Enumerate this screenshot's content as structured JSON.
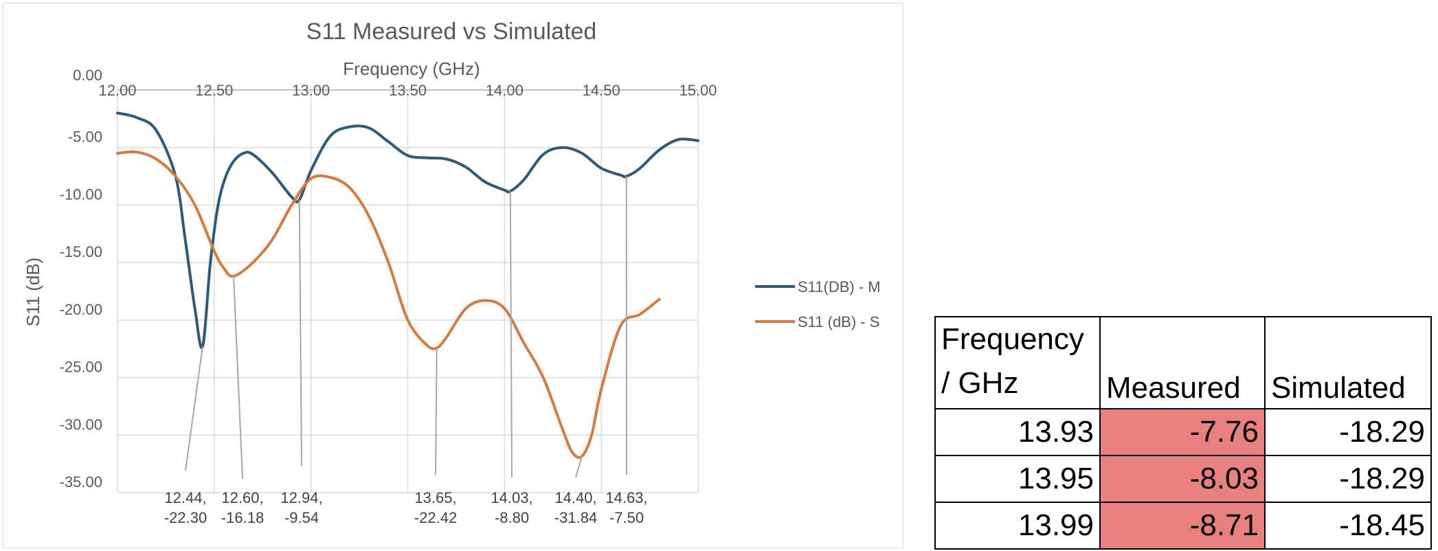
{
  "chart_data": {
    "type": "line",
    "title": "S11 Measured vs Simulated",
    "xlabel": "Frequency (GHz)",
    "ylabel": "S11 (dB)",
    "xlim": [
      12.0,
      15.0
    ],
    "ylim": [
      -35.0,
      0.0
    ],
    "x_ticks": [
      "12.00",
      "12.50",
      "13.00",
      "13.50",
      "14.00",
      "14.50",
      "15.00"
    ],
    "y_ticks": [
      "0.00",
      "-5.00",
      "-10.00",
      "-15.00",
      "-20.00",
      "-25.00",
      "-30.00",
      "-35.00"
    ],
    "x_tick_values": [
      12.0,
      12.5,
      13.0,
      13.5,
      14.0,
      14.5,
      15.0
    ],
    "y_tick_values": [
      0,
      -5,
      -10,
      -15,
      -20,
      -25,
      -30,
      -35
    ],
    "x_axis_position": "top",
    "grid": true,
    "legend_position": "right",
    "series": [
      {
        "name": "S11(DB) - M",
        "color": "#2e5a7a",
        "x": [
          12.0,
          12.1,
          12.2,
          12.3,
          12.35,
          12.4,
          12.44,
          12.48,
          12.52,
          12.56,
          12.6,
          12.65,
          12.7,
          12.8,
          12.9,
          12.94,
          13.0,
          13.1,
          13.2,
          13.3,
          13.4,
          13.5,
          13.6,
          13.7,
          13.8,
          13.9,
          14.0,
          14.03,
          14.1,
          14.2,
          14.3,
          14.4,
          14.5,
          14.6,
          14.63,
          14.7,
          14.8,
          14.9,
          15.0
        ],
        "y": [
          -2.0,
          -2.4,
          -3.5,
          -7.5,
          -13.0,
          -19.0,
          -22.3,
          -15.0,
          -10.0,
          -7.5,
          -6.2,
          -5.5,
          -5.6,
          -7.2,
          -9.3,
          -9.54,
          -7.0,
          -4.0,
          -3.2,
          -3.3,
          -4.5,
          -5.7,
          -5.9,
          -6.0,
          -6.7,
          -8.0,
          -8.7,
          -8.8,
          -7.8,
          -5.6,
          -5.0,
          -5.5,
          -6.8,
          -7.4,
          -7.5,
          -6.8,
          -5.2,
          -4.3,
          -4.4
        ]
      },
      {
        "name": "S11 (dB) - S",
        "color": "#d97a3a",
        "x": [
          12.0,
          12.1,
          12.2,
          12.3,
          12.4,
          12.5,
          12.55,
          12.6,
          12.7,
          12.8,
          12.9,
          13.0,
          13.1,
          13.2,
          13.3,
          13.4,
          13.5,
          13.6,
          13.65,
          13.7,
          13.8,
          13.9,
          14.0,
          14.1,
          14.2,
          14.3,
          14.35,
          14.4,
          14.45,
          14.5,
          14.6,
          14.7,
          14.8
        ],
        "y": [
          -5.5,
          -5.4,
          -6.0,
          -7.5,
          -10.0,
          -14.0,
          -15.5,
          -16.18,
          -15.0,
          -13.0,
          -10.0,
          -7.7,
          -7.6,
          -8.5,
          -11.0,
          -15.0,
          -20.0,
          -22.2,
          -22.42,
          -21.5,
          -19.0,
          -18.3,
          -19.0,
          -22.0,
          -25.0,
          -29.5,
          -31.5,
          -31.84,
          -30.0,
          -26.0,
          -20.5,
          -19.5,
          -18.2
        ]
      }
    ],
    "annotations": [
      {
        "line1": "12.44,",
        "line2": "-22.30",
        "x": 12.44,
        "y": -22.3
      },
      {
        "line1": "12.60,",
        "line2": "-16.18",
        "x": 12.6,
        "y": -16.18
      },
      {
        "line1": "12.94,",
        "line2": "-9.54",
        "x": 12.94,
        "y": -9.54
      },
      {
        "line1": "13.65,",
        "line2": "-22.42",
        "x": 13.65,
        "y": -22.42
      },
      {
        "line1": "14.03,",
        "line2": "-8.80",
        "x": 14.03,
        "y": -8.8
      },
      {
        "line1": "14.40,",
        "line2": "-31.84",
        "x": 14.4,
        "y": -31.84
      },
      {
        "line1": "14.63,",
        "line2": "-7.50",
        "x": 14.63,
        "y": -7.5
      }
    ]
  },
  "table": {
    "headers": {
      "frequency_line1": "Frequency",
      "frequency_line2": "/ GHz",
      "measured": "Measured",
      "simulated": "Simulated"
    },
    "highlight_color": "#e88080",
    "rows": [
      {
        "frequency": "13.93",
        "measured": "-7.76",
        "simulated": "-18.29"
      },
      {
        "frequency": "13.95",
        "measured": "-8.03",
        "simulated": "-18.29"
      },
      {
        "frequency": "13.99",
        "measured": "-8.71",
        "simulated": "-18.45"
      }
    ]
  }
}
